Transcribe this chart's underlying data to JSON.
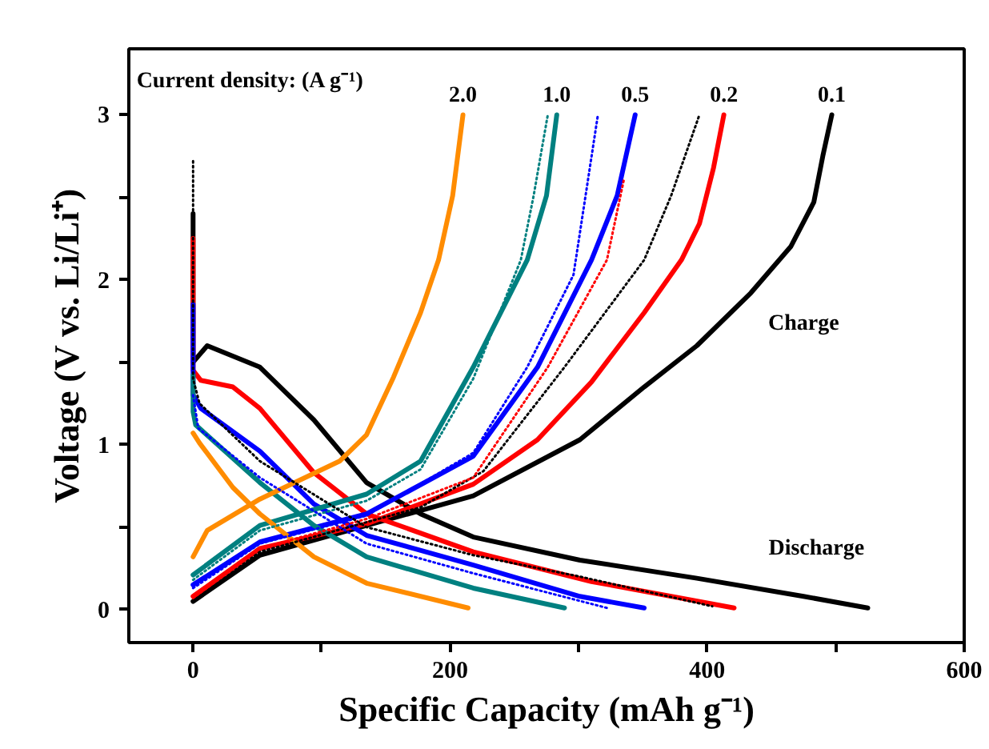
{
  "chart_data": {
    "type": "line",
    "xlabel": "Specific Capacity (mAh g⁻¹)",
    "ylabel": "Voltage (V vs. Li/Li⁺)",
    "xlim": [
      -50,
      600
    ],
    "ylim": [
      -0.2,
      3.4
    ],
    "xticks": [
      0,
      {
        "value": 100,
        "label": null
      },
      200,
      {
        "value": 300,
        "label": null
      },
      400,
      {
        "value": 500,
        "label": null
      },
      600
    ],
    "yticks": [
      0,
      {
        "value": 0.5,
        "label": null
      },
      1,
      {
        "value": 1.5,
        "label": null
      },
      2,
      {
        "value": 2.5,
        "label": null
      },
      3
    ],
    "marker": "none",
    "annotations": [
      "Current density: (A g⁻¹)",
      "Charge",
      "Discharge"
    ],
    "series": [
      {
        "name": "0.1",
        "color": "#000000",
        "line_style": "solid",
        "x": [
          0,
          52,
          135,
          218,
          301,
          351,
          392,
          434,
          465,
          483,
          490,
          497
        ],
        "values": [
          0.05,
          0.33,
          0.51,
          0.69,
          1.03,
          1.35,
          1.6,
          1.92,
          2.2,
          2.47,
          2.75,
          3.0
        ]
      },
      {
        "color": "#000000",
        "line_style": "solid",
        "x": [
          0,
          0,
          11,
          52,
          94,
          135,
          177,
          218,
          301,
          392,
          475,
          525
        ],
        "values": [
          2.4,
          1.5,
          1.6,
          1.47,
          1.15,
          0.77,
          0.58,
          0.44,
          0.3,
          0.19,
          0.08,
          0.01
        ]
      },
      {
        "name": "0.2",
        "color": "#ff0000",
        "line_style": "solid",
        "x": [
          0,
          52,
          135,
          218,
          268,
          310,
          351,
          380,
          394,
          405,
          413
        ],
        "values": [
          0.08,
          0.37,
          0.52,
          0.76,
          1.03,
          1.38,
          1.8,
          2.12,
          2.34,
          2.68,
          3.0
        ]
      },
      {
        "color": "#ff0000",
        "line_style": "solid",
        "x": [
          0,
          0,
          6,
          31,
          52,
          94,
          135,
          218,
          310,
          421
        ],
        "values": [
          2.25,
          1.45,
          1.39,
          1.35,
          1.22,
          0.83,
          0.58,
          0.35,
          0.17,
          0.01
        ]
      },
      {
        "name": "0.5",
        "color": "#0000ff",
        "line_style": "solid",
        "x": [
          0,
          52,
          135,
          218,
          268,
          310,
          330,
          344
        ],
        "values": [
          0.15,
          0.41,
          0.58,
          0.93,
          1.47,
          2.12,
          2.51,
          3.0
        ]
      },
      {
        "color": "#0000ff",
        "line_style": "solid",
        "x": [
          0,
          0,
          6,
          52,
          94,
          135,
          218,
          301,
          351
        ],
        "values": [
          1.85,
          1.3,
          1.22,
          0.96,
          0.64,
          0.45,
          0.27,
          0.08,
          0.01
        ]
      },
      {
        "name": "1.0",
        "color": "#008080",
        "line_style": "solid",
        "x": [
          0,
          52,
          135,
          177,
          218,
          260,
          275,
          283
        ],
        "values": [
          0.21,
          0.51,
          0.7,
          0.9,
          1.47,
          2.12,
          2.51,
          3.0
        ]
      },
      {
        "color": "#008080",
        "line_style": "solid",
        "x": [
          0,
          0,
          2,
          52,
          94,
          135,
          218,
          289
        ],
        "values": [
          1.42,
          1.2,
          1.12,
          0.77,
          0.51,
          0.32,
          0.13,
          0.01
        ]
      },
      {
        "name": "2.0",
        "color": "#ff8c00",
        "line_style": "solid",
        "x": [
          0,
          11,
          52,
          114,
          135,
          156,
          177,
          191,
          202,
          210
        ],
        "values": [
          0.32,
          0.48,
          0.67,
          0.9,
          1.06,
          1.41,
          1.8,
          2.12,
          2.51,
          3.0
        ]
      },
      {
        "color": "#ff8c00",
        "line_style": "solid",
        "x": [
          0,
          5,
          31,
          52,
          94,
          135,
          214
        ],
        "values": [
          1.07,
          1.01,
          0.74,
          0.58,
          0.32,
          0.16,
          0.01
        ]
      },
      {
        "color": "#000000",
        "line_style": "dotted",
        "x": [
          0,
          52,
          135,
          177,
          226,
          289,
          351,
          372,
          394
        ],
        "values": [
          0.05,
          0.35,
          0.53,
          0.62,
          0.84,
          1.47,
          2.12,
          2.51,
          3.0
        ]
      },
      {
        "color": "#ff0000",
        "line_style": "dotted",
        "x": [
          0,
          52,
          135,
          218,
          276,
          322,
          335
        ],
        "values": [
          0.07,
          0.37,
          0.55,
          0.8,
          1.47,
          2.12,
          2.6
        ]
      },
      {
        "color": "#0000ff",
        "line_style": "dotted",
        "x": [
          0,
          52,
          135,
          218,
          260,
          296,
          315
        ],
        "values": [
          0.13,
          0.4,
          0.57,
          0.95,
          1.47,
          2.03,
          3.0
        ]
      },
      {
        "color": "#008080",
        "line_style": "dotted",
        "x": [
          0,
          52,
          135,
          177,
          218,
          255,
          265,
          276
        ],
        "values": [
          0.18,
          0.48,
          0.66,
          0.85,
          1.4,
          2.12,
          2.51,
          3.0
        ]
      },
      {
        "color": "#000000",
        "line_style": "dotted",
        "x": [
          0,
          0,
          5,
          52,
          135,
          218,
          301,
          404
        ],
        "values": [
          2.72,
          1.4,
          1.25,
          0.9,
          0.5,
          0.33,
          0.2,
          0.02
        ]
      },
      {
        "color": "#0000ff",
        "line_style": "dotted",
        "x": [
          0,
          4,
          52,
          135,
          218,
          322
        ],
        "values": [
          1.3,
          1.1,
          0.8,
          0.4,
          0.22,
          0.01
        ]
      }
    ]
  }
}
